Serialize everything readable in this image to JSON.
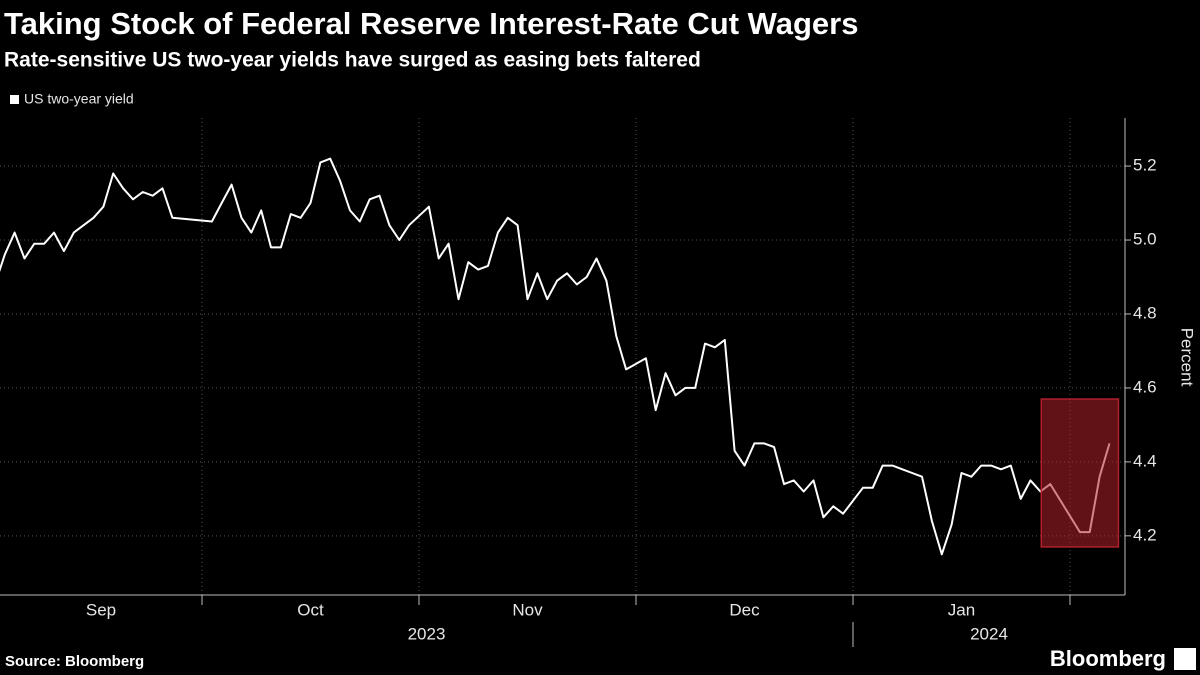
{
  "chart_data": {
    "type": "line",
    "title": "Taking Stock of Federal Reserve Interest-Rate Cut Wagers",
    "subtitle": "Rate-sensitive US two-year yields have surged as easing bets faltered",
    "y_label": "Percent",
    "source": "Source: Bloomberg",
    "logo": "Bloomberg",
    "x": [
      "2023-09",
      "2023-09",
      "2023-09",
      "2023-09",
      "2023-09",
      "2023-09",
      "2023-09",
      "2023-09",
      "2023-09",
      "2023-09",
      "2023-09",
      "2023-09",
      "2023-09",
      "2023-09",
      "2023-09",
      "2023-09",
      "2023-09",
      "2023-09",
      "2023-09",
      "2023-10",
      "2023-10",
      "2023-10",
      "2023-10",
      "2023-10",
      "2023-10",
      "2023-10",
      "2023-10",
      "2023-10",
      "2023-10",
      "2023-10",
      "2023-10",
      "2023-10",
      "2023-10",
      "2023-10",
      "2023-10",
      "2023-10",
      "2023-10",
      "2023-10",
      "2023-10",
      "2023-10",
      "2023-11",
      "2023-11",
      "2023-11",
      "2023-11",
      "2023-11",
      "2023-11",
      "2023-11",
      "2023-11",
      "2023-11",
      "2023-11",
      "2023-11",
      "2023-11",
      "2023-11",
      "2023-11",
      "2023-11",
      "2023-11",
      "2023-11",
      "2023-11",
      "2023-11",
      "2023-11",
      "2023-11",
      "2023-12",
      "2023-12",
      "2023-12",
      "2023-12",
      "2023-12",
      "2023-12",
      "2023-12",
      "2023-12",
      "2023-12",
      "2023-12",
      "2023-12",
      "2023-12",
      "2023-12",
      "2023-12",
      "2023-12",
      "2023-12",
      "2023-12",
      "2023-12",
      "2023-12",
      "2023-12",
      "2023-12",
      "2024-01",
      "2024-01",
      "2024-01",
      "2024-01",
      "2024-01",
      "2024-01",
      "2024-01",
      "2024-01",
      "2024-01",
      "2024-01",
      "2024-01",
      "2024-01",
      "2024-01",
      "2024-01",
      "2024-01",
      "2024-01",
      "2024-01",
      "2024-01",
      "2024-01",
      "2024-01",
      "2024-02",
      "2024-02",
      "2024-02",
      "2024-02"
    ],
    "series": [
      {
        "name": "US two-year yield",
        "color": "#ffffff",
        "values": [
          4.88,
          4.96,
          5.02,
          4.95,
          4.99,
          4.99,
          5.02,
          4.97,
          5.02,
          5.04,
          5.06,
          5.09,
          5.18,
          5.14,
          5.11,
          5.13,
          5.12,
          5.14,
          5.06,
          5.05,
          5.1,
          5.15,
          5.06,
          5.02,
          5.08,
          4.98,
          4.98,
          5.07,
          5.06,
          5.1,
          5.21,
          5.22,
          5.16,
          5.08,
          5.05,
          5.11,
          5.12,
          5.04,
          5.0,
          5.04,
          5.09,
          4.95,
          4.99,
          4.84,
          4.94,
          4.92,
          4.93,
          5.02,
          5.06,
          5.04,
          4.84,
          4.91,
          4.84,
          4.89,
          4.91,
          4.88,
          4.9,
          4.95,
          4.89,
          4.74,
          4.65,
          4.68,
          4.54,
          4.64,
          4.58,
          4.6,
          4.6,
          4.72,
          4.71,
          4.73,
          4.43,
          4.39,
          4.45,
          4.45,
          4.44,
          4.34,
          4.35,
          4.32,
          4.35,
          4.25,
          4.28,
          4.26,
          4.33,
          4.33,
          4.39,
          4.39,
          4.38,
          4.37,
          4.36,
          4.24,
          4.15,
          4.23,
          4.37,
          4.36,
          4.39,
          4.39,
          4.38,
          4.39,
          4.3,
          4.35,
          4.32,
          4.34,
          4.21,
          4.21,
          4.36,
          4.45
        ]
      }
    ],
    "xticks": [
      {
        "value": "2023-09",
        "label": "Sep"
      },
      {
        "value": "2023-10",
        "label": "Oct"
      },
      {
        "value": "2023-11",
        "label": "Nov"
      },
      {
        "value": "2023-12",
        "label": "Dec"
      },
      {
        "value": "2024-01",
        "label": "Jan"
      }
    ],
    "years": [
      "2023",
      "2024"
    ],
    "ylim": [
      4.04,
      5.33
    ],
    "yticks": [
      4.2,
      4.4,
      4.6,
      4.8,
      {
        "value": 5,
        "label": "5.0"
      },
      5.2
    ],
    "grid": true,
    "y_axis_side": "right",
    "highlight_color": "#b0202a"
  }
}
